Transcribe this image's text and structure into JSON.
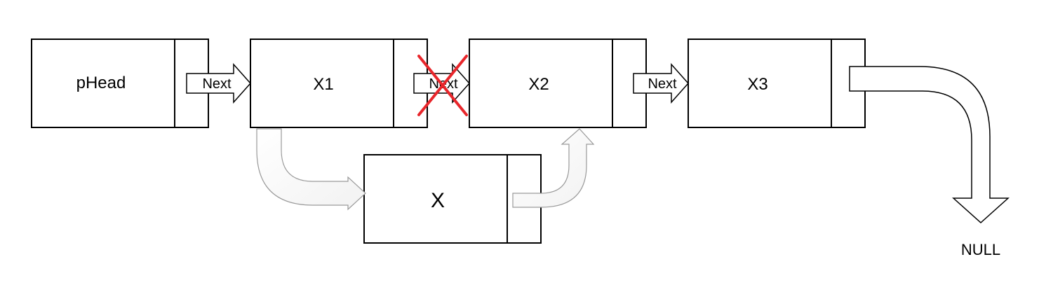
{
  "nodes": {
    "head": {
      "label": "pHead"
    },
    "x1": {
      "label": "X1"
    },
    "x2": {
      "label": "X2"
    },
    "x3": {
      "label": "X3"
    },
    "x": {
      "label": "X"
    }
  },
  "arrows": {
    "head_to_x1": {
      "label": "Next"
    },
    "x1_to_x2": {
      "label": "Next",
      "crossed_out": true
    },
    "x2_to_x3": {
      "label": "Next"
    }
  },
  "terminal": {
    "label": "NULL"
  },
  "colors": {
    "stroke": "#000000",
    "fill": "#ffffff",
    "cross": "#e8262b",
    "curve_stroke": "#9a9a9a"
  }
}
